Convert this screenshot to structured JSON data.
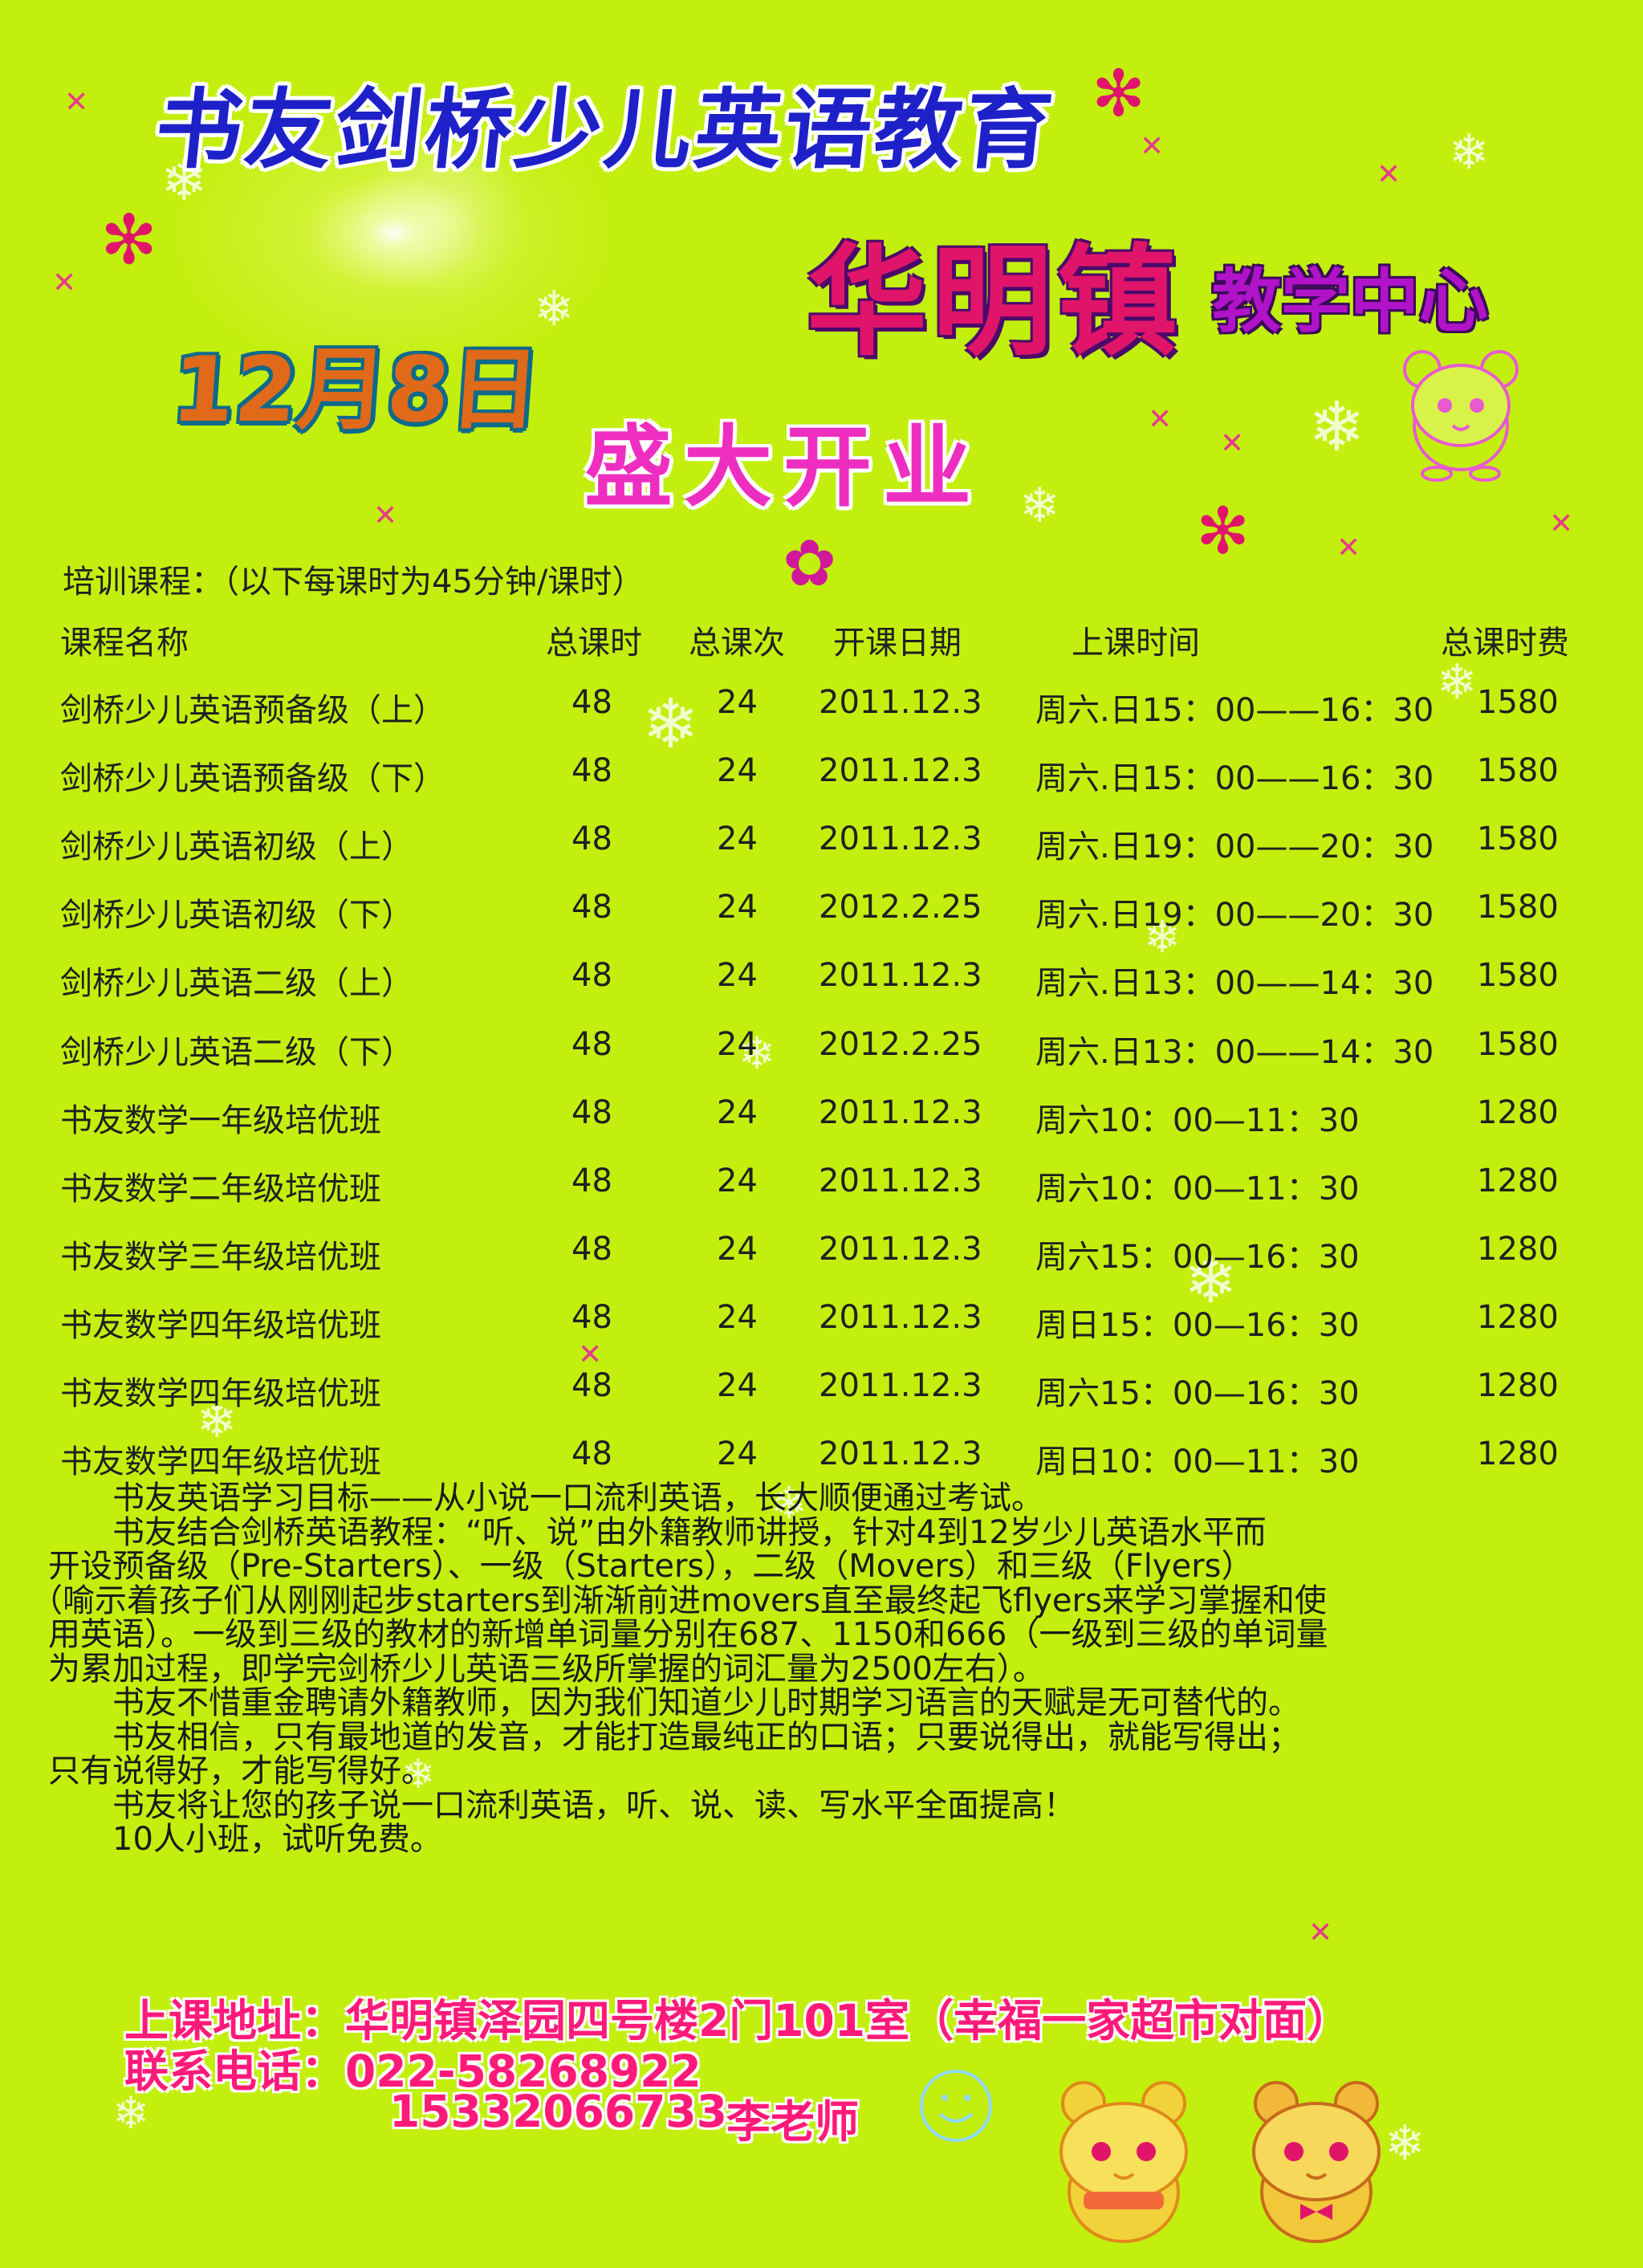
{
  "header": {
    "school_name": "书友剑桥少儿英语教育",
    "town_name": "华明镇",
    "center_name": "教学中心",
    "open_date": "12月8日",
    "open_title": "盛大开业"
  },
  "schedule": {
    "title": "培训课程：（以下每课时为45分钟/课时）",
    "headers": {
      "name": "课程名称",
      "hours": "总课时",
      "sessions": "总课次",
      "start": "开课日期",
      "time": "上课时间",
      "fee": "总课时费"
    },
    "rows": [
      {
        "name": "剑桥少儿英语预备级（上）",
        "hours": "48",
        "sessions": "24",
        "start": "2011.12.3",
        "time": "周六.日15：00——16：30",
        "fee": "1580"
      },
      {
        "name": "剑桥少儿英语预备级（下）",
        "hours": "48",
        "sessions": "24",
        "start": "2011.12.3",
        "time": "周六.日15：00——16：30",
        "fee": "1580"
      },
      {
        "name": "剑桥少儿英语初级（上）",
        "hours": "48",
        "sessions": "24",
        "start": "2011.12.3",
        "time": "周六.日19：00——20：30",
        "fee": "1580"
      },
      {
        "name": "剑桥少儿英语初级（下）",
        "hours": "48",
        "sessions": "24",
        "start": "2012.2.25",
        "time": "周六.日19：00——20：30",
        "fee": "1580"
      },
      {
        "name": "剑桥少儿英语二级（上）",
        "hours": "48",
        "sessions": "24",
        "start": "2011.12.3",
        "time": "周六.日13：00——14：30",
        "fee": "1580"
      },
      {
        "name": "剑桥少儿英语二级（下）",
        "hours": "48",
        "sessions": "24",
        "start": "2012.2.25",
        "time": "周六.日13：00——14：30",
        "fee": "1580"
      },
      {
        "name": "书友数学一年级培优班",
        "hours": "48",
        "sessions": "24",
        "start": "2011.12.3",
        "time": "周六10：00—11：30",
        "fee": "1280"
      },
      {
        "name": "书友数学二年级培优班",
        "hours": "48",
        "sessions": "24",
        "start": "2011.12.3",
        "time": "周六10：00—11：30",
        "fee": "1280"
      },
      {
        "name": "书友数学三年级培优班",
        "hours": "48",
        "sessions": "24",
        "start": "2011.12.3",
        "time": "周六15：00—16：30",
        "fee": "1280"
      },
      {
        "name": "书友数学四年级培优班",
        "hours": "48",
        "sessions": "24",
        "start": "2011.12.3",
        "time": "周日15：00—16：30",
        "fee": "1280"
      },
      {
        "name": "书友数学四年级培优班",
        "hours": "48",
        "sessions": "24",
        "start": "2011.12.3",
        "time": "周六15：00—16：30",
        "fee": "1280"
      },
      {
        "name": "书友数学四年级培优班",
        "hours": "48",
        "sessions": "24",
        "start": "2011.12.3",
        "time": "周日10：00—11：30",
        "fee": "1280"
      }
    ]
  },
  "intro": {
    "lines": [
      "　　书友英语学习目标——从小说一口流利英语，长大顺便通过考试。",
      "　　书友结合剑桥英语教程：“听、说”由外籍教师讲授，针对4到12岁少儿英语水平而",
      "开设预备级（Pre-Starters）、一级（Starters），二级（Movers）和三级（Flyers）",
      "（喻示着孩子们从刚刚起步starters到渐渐前进movers直至最终起飞flyers来学习掌握和使",
      "用英语）。一级到三级的教材的新增单词量分别在687、1150和666（一级到三级的单词量",
      "为累加过程，即学完剑桥少儿英语三级所掌握的词汇量为2500左右）。",
      "　　书友不惜重金聘请外籍教师，因为我们知道少儿时期学习语言的天赋是无可替代的。",
      "　　书友相信，只有最地道的发音，才能打造最纯正的口语；只要说得出，就能写得出；",
      "只有说得好，才能写得好。",
      "　　书友将让您的孩子说一口流利英语，听、说、读、写水平全面提高！",
      "　　10人小班，试听免费。"
    ]
  },
  "contact": {
    "address": "上课地址：华明镇泽园四号楼2门101室（幸福一家超市对面）",
    "phone": "联系电话：022-58268922",
    "mobile": "15332066733",
    "teacher": "李老师"
  },
  "colors": {
    "background": "#c3ef0f",
    "title_blue": "#1e20c8",
    "town_red": "#e0156a",
    "pink": "#ff1a7a"
  }
}
